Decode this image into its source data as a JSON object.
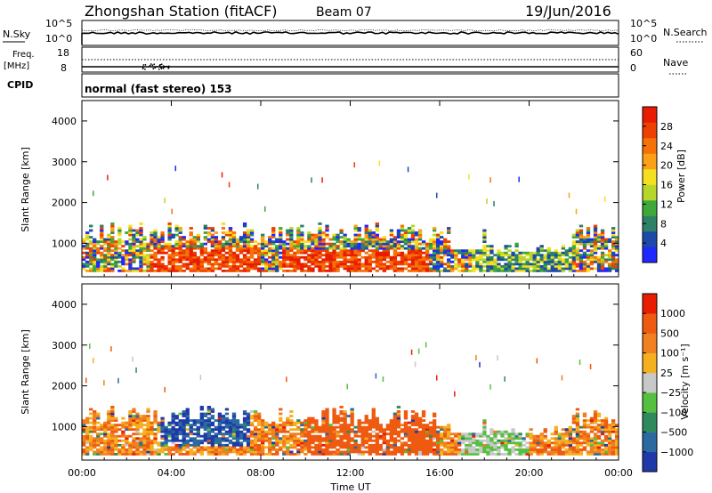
{
  "header": {
    "station": "Zhongshan Station (fitACF)",
    "beam": "Beam 07",
    "date": "19/Jun/2016"
  },
  "nsky_panel": {
    "left_label": "N.Sky",
    "left_ticks": [
      "10^5",
      "10^0"
    ],
    "right_ticks": [
      "10^5",
      "10^0"
    ],
    "right_label": "N.Search"
  },
  "freq_panel": {
    "left_label_line1": "Freq.",
    "left_label_line2": "[MHz]",
    "left_ticks": [
      "18",
      "8"
    ],
    "right_ticks": [
      "60",
      "0"
    ],
    "right_label": "Nave"
  },
  "cpid_panel": {
    "label": "CPID",
    "text": "normal (fast stereo) 153"
  },
  "chart_data": [
    {
      "type": "heatmap",
      "name": "power",
      "ylabel": "Slant Range [km]",
      "xlabel": "Time UT",
      "ylim": [
        180,
        4500
      ],
      "yticks": [
        1000,
        2000,
        3000,
        4000
      ],
      "xticks": [
        "00:00",
        "04:00",
        "08:00",
        "12:00",
        "16:00",
        "20:00",
        "00:00"
      ],
      "colorbar_label": "Power [dB]",
      "colorbar_ticks": [
        "28",
        "24",
        "20",
        "16",
        "12",
        "8",
        "4"
      ],
      "colors": [
        "#1f28ff",
        "#1d4aa8",
        "#2e8066",
        "#3ea83a",
        "#b8d62a",
        "#f5e020",
        "#fca018",
        "#f57208",
        "#ee4000",
        "#e81d00"
      ]
    },
    {
      "type": "heatmap",
      "name": "velocity",
      "ylabel": "Slant Range [km]",
      "xlabel": "Time UT",
      "ylim": [
        180,
        4500
      ],
      "yticks": [
        1000,
        2000,
        3000,
        4000
      ],
      "xticks": [
        "00:00",
        "04:00",
        "08:00",
        "12:00",
        "16:00",
        "20:00",
        "00:00"
      ],
      "colorbar_label": "Velocity [m s⁻¹]",
      "colorbar_ticks": [
        "1000",
        "500",
        "100",
        "25",
        "−25",
        "−100",
        "−500",
        "−1000"
      ],
      "colors": [
        "#1f3aa8",
        "#2a6aa0",
        "#2e8a5a",
        "#55c040",
        "#c8c8c8",
        "#f5b020",
        "#f08020",
        "#ee5a10",
        "#e81d00"
      ]
    }
  ]
}
